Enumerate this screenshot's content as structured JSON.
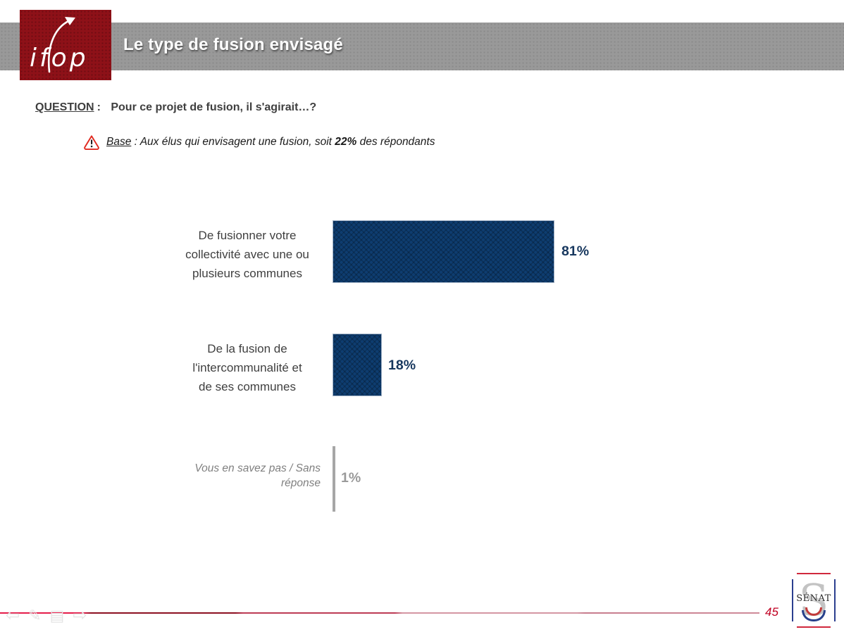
{
  "header": {
    "title": "Le type de fusion envisagé",
    "logo_text": "ifop"
  },
  "question": {
    "label": "QUESTION",
    "colon": ":",
    "text": "Pour ce projet de fusion, il s'agirait…?"
  },
  "base_note": {
    "label": "Base",
    "text_mid": " : Aux élus qui envisagent une fusion, soit ",
    "bold": "22%",
    "text_end": " des répondants"
  },
  "chart_data": {
    "type": "bar",
    "orientation": "horizontal",
    "categories": [
      "De fusionner votre collectivité avec une ou plusieurs communes",
      "De la fusion de l'intercommunalité et de ses communes",
      "Vous en savez pas / Sans réponse"
    ],
    "category_lines": [
      [
        "De fusionner votre",
        "collectivité avec une ou",
        "plusieurs communes"
      ],
      [
        "De la fusion de",
        "l'intercommunalité et",
        "de ses communes"
      ],
      [
        "Vous en savez pas / Sans",
        "réponse"
      ]
    ],
    "values": [
      81,
      18,
      1
    ],
    "value_labels": [
      "81%",
      "18%",
      "1%"
    ],
    "xlim": [
      0,
      100
    ],
    "bar_color": "#0e3d70",
    "na_bar_color": "#a6a6a6",
    "value_color": "#17375e",
    "na_value_color": "#9a9a9a",
    "grid": false,
    "legend": false
  },
  "footer": {
    "page_number": "45",
    "senat_logo_text": "SÉNAT",
    "line_color": "#9b1b2e"
  },
  "icons": {
    "warning": "warning-triangle",
    "nav": [
      "back-arrow",
      "pen",
      "slide-menu",
      "forward-arrow"
    ]
  }
}
